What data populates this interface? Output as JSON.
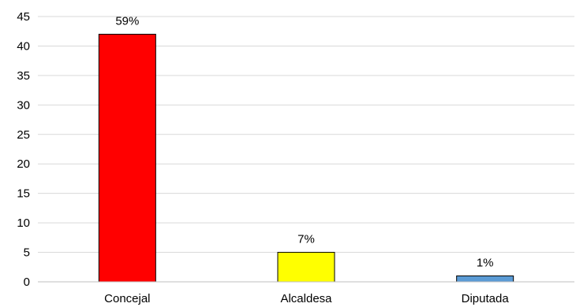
{
  "chart_data": {
    "type": "bar",
    "categories": [
      "Concejal",
      "Alcaldesa",
      "Diputada"
    ],
    "values": [
      42,
      5,
      1
    ],
    "data_labels": [
      "59%",
      "7%",
      "1%"
    ],
    "colors": [
      "#ff0000",
      "#ffff00",
      "#5b9bd5"
    ],
    "ylim": [
      0,
      45
    ],
    "yticks": [
      0,
      5,
      10,
      15,
      20,
      25,
      30,
      35,
      40,
      45
    ],
    "grid": true,
    "legend": "none"
  }
}
